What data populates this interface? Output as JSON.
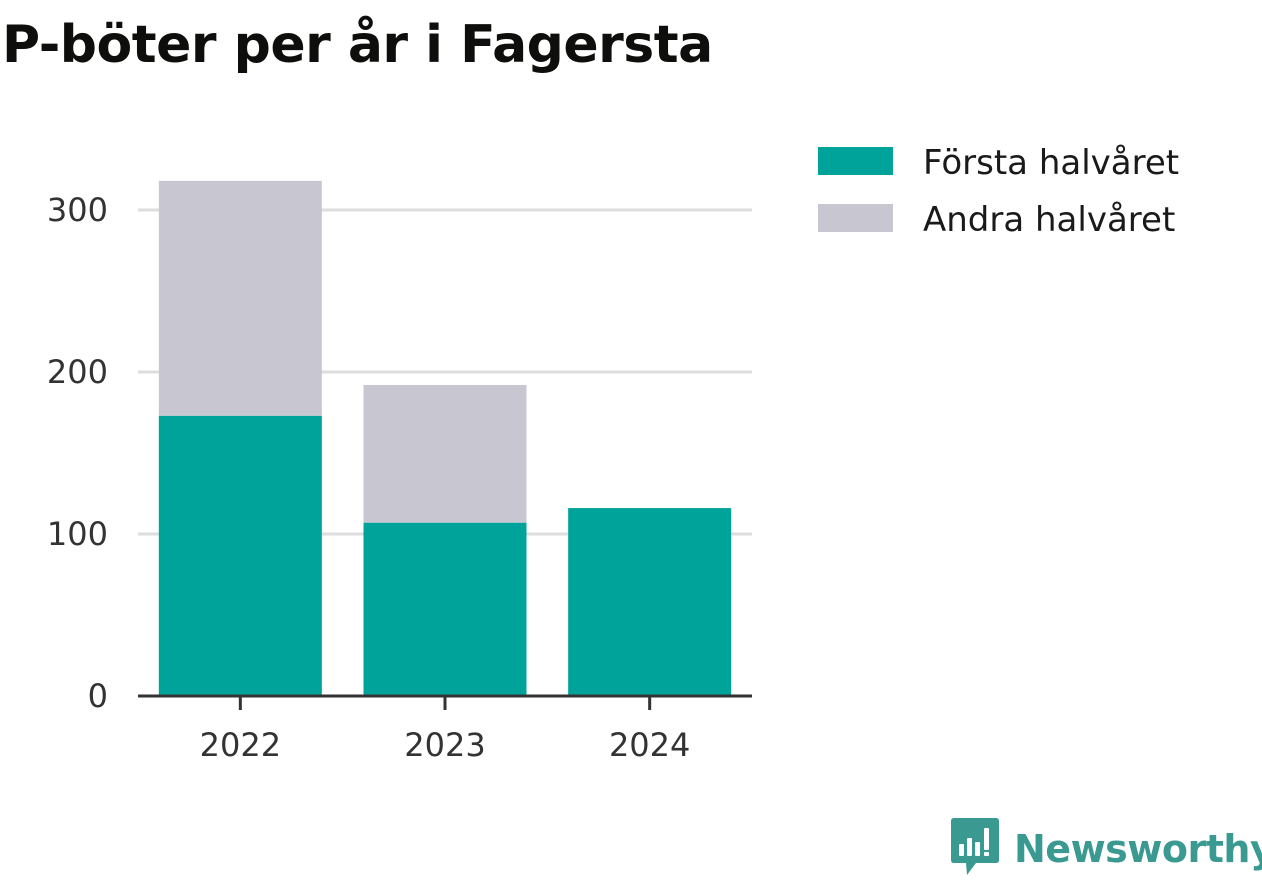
{
  "chart_data": {
    "type": "bar",
    "stacked": true,
    "title": "P-böter per år i Fagersta",
    "categories": [
      "2022",
      "2023",
      "2024"
    ],
    "series": [
      {
        "name": "Första halvåret",
        "color": "#00a39a",
        "values": [
          173,
          107,
          116
        ]
      },
      {
        "name": "Andra halvåret",
        "color": "#c8c7d1",
        "values": [
          145,
          85,
          0
        ]
      }
    ],
    "yticks": [
      0,
      100,
      200,
      300
    ],
    "ylim": [
      0,
      330
    ],
    "grid": true,
    "legend": "top-right"
  },
  "brand": {
    "name": "Newsworthy",
    "icon": "newsworthy-logo-icon",
    "color": "#3a9a92"
  }
}
